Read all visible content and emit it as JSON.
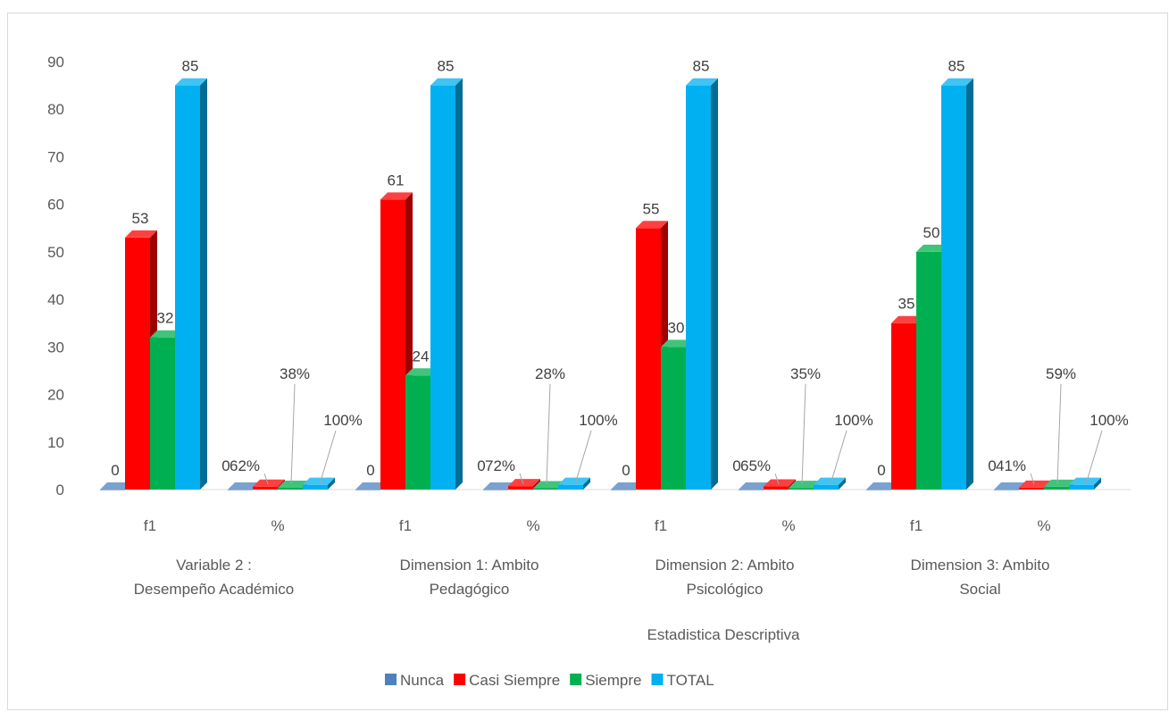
{
  "chart_data": {
    "type": "bar",
    "style": "3d-clustered-column",
    "xlabel": "Estadistica Descriptiva",
    "ylabel": "",
    "ylim": [
      0,
      90
    ],
    "yticks": [
      0,
      10,
      20,
      30,
      40,
      50,
      60,
      70,
      80,
      90
    ],
    "grid": false,
    "legend_position": "bottom",
    "groups": [
      {
        "label_lines": [
          "Variable 2 :",
          "Desempeño Académico"
        ],
        "subcategories": [
          "f1",
          "%"
        ]
      },
      {
        "label_lines": [
          "Dimension 1: Ambito",
          "Pedagógico"
        ],
        "subcategories": [
          "f1",
          "%"
        ]
      },
      {
        "label_lines": [
          "Dimension 2: Ambito",
          "Psicológico"
        ],
        "subcategories": [
          "f1",
          "%"
        ]
      },
      {
        "label_lines": [
          "Dimension 3: Ambito",
          "Social"
        ],
        "subcategories": [
          "f1",
          "%"
        ]
      }
    ],
    "series": [
      {
        "name": "Nunca",
        "color": "#4f81bd",
        "values": [
          0,
          0,
          0,
          0,
          0,
          0,
          0,
          0
        ],
        "labels": [
          "0",
          "0",
          "0",
          "0",
          "0",
          "0",
          "0",
          "0"
        ]
      },
      {
        "name": "Casi Siempre",
        "color": "#ff0000",
        "values": [
          53,
          0.62,
          61,
          0.72,
          55,
          0.65,
          35,
          0.41
        ],
        "labels": [
          "53",
          "62%",
          "61",
          "72%",
          "55",
          "65%",
          "35",
          "41%"
        ]
      },
      {
        "name": "Siempre",
        "color": "#00b050",
        "values": [
          32,
          0.38,
          24,
          0.28,
          30,
          0.35,
          50,
          0.59
        ],
        "labels": [
          "32",
          "38%",
          "24",
          "28%",
          "30",
          "35%",
          "50",
          "59%"
        ]
      },
      {
        "name": "TOTAL",
        "color": "#00b0f0",
        "values": [
          85,
          1,
          85,
          1,
          85,
          1,
          85,
          1
        ],
        "labels": [
          "85",
          "100%",
          "85",
          "100%",
          "85",
          "100%",
          "85",
          "100%"
        ]
      }
    ]
  }
}
